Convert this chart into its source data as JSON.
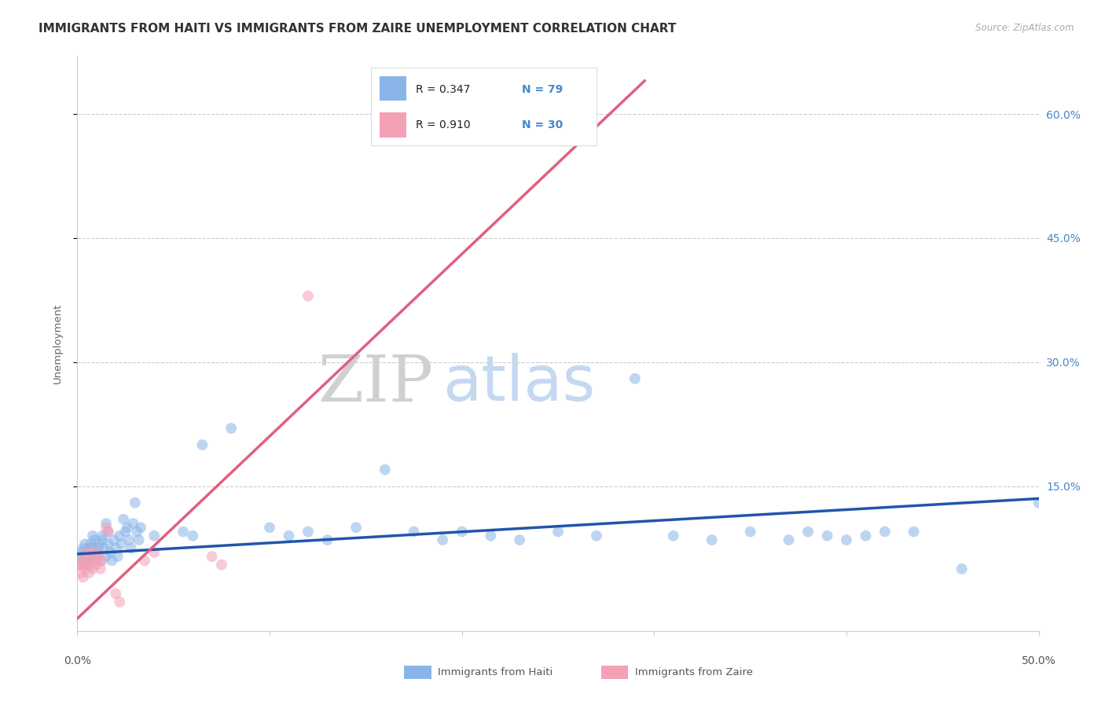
{
  "title": "IMMIGRANTS FROM HAITI VS IMMIGRANTS FROM ZAIRE UNEMPLOYMENT CORRELATION CHART",
  "source": "Source: ZipAtlas.com",
  "ylabel": "Unemployment",
  "ytick_values": [
    0.6,
    0.45,
    0.3,
    0.15
  ],
  "ytick_labels": [
    "60.0%",
    "45.0%",
    "30.0%",
    "15.0%"
  ],
  "xlim": [
    0.0,
    0.5
  ],
  "ylim": [
    -0.025,
    0.67
  ],
  "haiti_color": "#89b4e8",
  "zaire_color": "#f4a0b5",
  "haiti_line_color": "#2255aa",
  "zaire_line_color": "#e06080",
  "haiti_points": [
    [
      0.001,
      0.065
    ],
    [
      0.002,
      0.07
    ],
    [
      0.002,
      0.055
    ],
    [
      0.003,
      0.06
    ],
    [
      0.003,
      0.075
    ],
    [
      0.004,
      0.065
    ],
    [
      0.004,
      0.08
    ],
    [
      0.005,
      0.07
    ],
    [
      0.005,
      0.055
    ],
    [
      0.006,
      0.075
    ],
    [
      0.006,
      0.06
    ],
    [
      0.007,
      0.08
    ],
    [
      0.007,
      0.065
    ],
    [
      0.008,
      0.09
    ],
    [
      0.008,
      0.075
    ],
    [
      0.009,
      0.06
    ],
    [
      0.009,
      0.085
    ],
    [
      0.01,
      0.07
    ],
    [
      0.01,
      0.065
    ],
    [
      0.011,
      0.08
    ],
    [
      0.011,
      0.075
    ],
    [
      0.012,
      0.06
    ],
    [
      0.013,
      0.09
    ],
    [
      0.013,
      0.085
    ],
    [
      0.014,
      0.075
    ],
    [
      0.015,
      0.065
    ],
    [
      0.015,
      0.105
    ],
    [
      0.016,
      0.08
    ],
    [
      0.016,
      0.095
    ],
    [
      0.017,
      0.07
    ],
    [
      0.018,
      0.06
    ],
    [
      0.019,
      0.085
    ],
    [
      0.02,
      0.075
    ],
    [
      0.021,
      0.065
    ],
    [
      0.022,
      0.09
    ],
    [
      0.023,
      0.08
    ],
    [
      0.024,
      0.11
    ],
    [
      0.025,
      0.095
    ],
    [
      0.026,
      0.1
    ],
    [
      0.027,
      0.085
    ],
    [
      0.028,
      0.075
    ],
    [
      0.029,
      0.105
    ],
    [
      0.03,
      0.13
    ],
    [
      0.031,
      0.095
    ],
    [
      0.032,
      0.085
    ],
    [
      0.033,
      0.1
    ],
    [
      0.04,
      0.09
    ],
    [
      0.055,
      0.095
    ],
    [
      0.06,
      0.09
    ],
    [
      0.065,
      0.2
    ],
    [
      0.08,
      0.22
    ],
    [
      0.1,
      0.1
    ],
    [
      0.11,
      0.09
    ],
    [
      0.12,
      0.095
    ],
    [
      0.13,
      0.085
    ],
    [
      0.145,
      0.1
    ],
    [
      0.16,
      0.17
    ],
    [
      0.175,
      0.095
    ],
    [
      0.19,
      0.085
    ],
    [
      0.2,
      0.095
    ],
    [
      0.215,
      0.09
    ],
    [
      0.23,
      0.085
    ],
    [
      0.25,
      0.095
    ],
    [
      0.27,
      0.09
    ],
    [
      0.29,
      0.28
    ],
    [
      0.31,
      0.09
    ],
    [
      0.33,
      0.085
    ],
    [
      0.35,
      0.095
    ],
    [
      0.37,
      0.085
    ],
    [
      0.38,
      0.095
    ],
    [
      0.39,
      0.09
    ],
    [
      0.4,
      0.085
    ],
    [
      0.41,
      0.09
    ],
    [
      0.42,
      0.095
    ],
    [
      0.435,
      0.095
    ],
    [
      0.46,
      0.05
    ],
    [
      0.5,
      0.13
    ]
  ],
  "zaire_points": [
    [
      0.001,
      0.055
    ],
    [
      0.002,
      0.06
    ],
    [
      0.002,
      0.045
    ],
    [
      0.003,
      0.055
    ],
    [
      0.003,
      0.04
    ],
    [
      0.004,
      0.065
    ],
    [
      0.004,
      0.05
    ],
    [
      0.005,
      0.07
    ],
    [
      0.005,
      0.055
    ],
    [
      0.006,
      0.06
    ],
    [
      0.006,
      0.045
    ],
    [
      0.007,
      0.07
    ],
    [
      0.007,
      0.055
    ],
    [
      0.008,
      0.065
    ],
    [
      0.008,
      0.05
    ],
    [
      0.009,
      0.06
    ],
    [
      0.01,
      0.07
    ],
    [
      0.01,
      0.055
    ],
    [
      0.011,
      0.065
    ],
    [
      0.012,
      0.05
    ],
    [
      0.013,
      0.06
    ],
    [
      0.015,
      0.1
    ],
    [
      0.016,
      0.095
    ],
    [
      0.02,
      0.02
    ],
    [
      0.022,
      0.01
    ],
    [
      0.035,
      0.06
    ],
    [
      0.04,
      0.07
    ],
    [
      0.07,
      0.065
    ],
    [
      0.075,
      0.055
    ],
    [
      0.12,
      0.38
    ]
  ],
  "zaire_line_x0": 0.0,
  "zaire_line_y0": -0.01,
  "zaire_line_x1": 0.295,
  "zaire_line_y1": 0.64,
  "haiti_line_x0": 0.0,
  "haiti_line_y0": 0.068,
  "haiti_line_x1": 0.5,
  "haiti_line_y1": 0.135,
  "marker_size": 100,
  "alpha_haiti": 0.55,
  "alpha_zaire": 0.55,
  "background_color": "#ffffff",
  "grid_color": "#cccccc",
  "title_color": "#333333",
  "zip_color": "#d0d0d0",
  "atlas_color": "#c5d8f0",
  "watermark_fontsize_zip": 60,
  "watermark_fontsize_atlas": 58
}
